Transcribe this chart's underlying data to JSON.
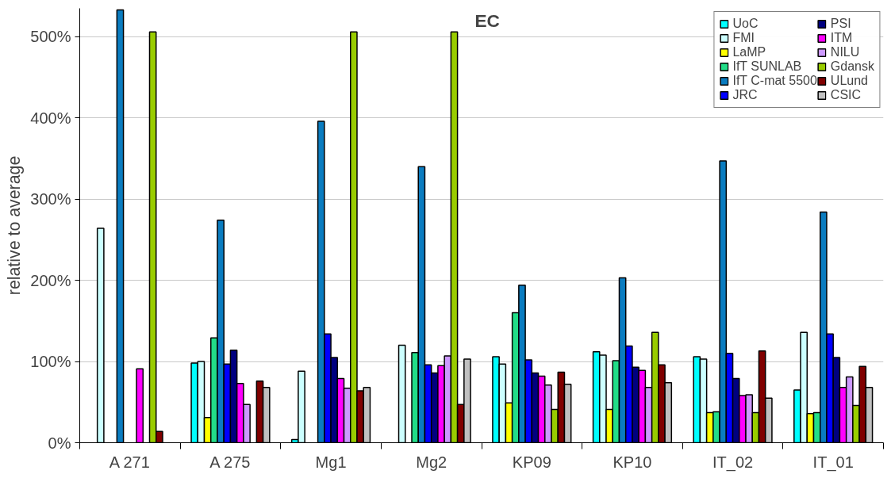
{
  "chart_data": {
    "type": "bar",
    "ylabel": "relative to average",
    "categories": [
      "A 271",
      "A 275",
      "Mg1",
      "Mg2",
      "KP09",
      "KP10",
      "IT_02",
      "IT_01"
    ],
    "series": [
      {
        "name": "UoC",
        "color": "#00ffff",
        "values": [
          null,
          98,
          4,
          null,
          106,
          112,
          106,
          65
        ]
      },
      {
        "name": "FMI",
        "color": "#ccffff",
        "values": [
          264,
          100,
          88,
          120,
          97,
          108,
          103,
          136
        ]
      },
      {
        "name": "LaMP",
        "color": "#ffff00",
        "values": [
          null,
          31,
          null,
          null,
          49,
          41,
          37,
          36
        ]
      },
      {
        "name": "IfT SUNLAB",
        "color": "#22dd88",
        "values": [
          null,
          129,
          null,
          111,
          160,
          101,
          38,
          37
        ]
      },
      {
        "name": "IfT C-mat 5500",
        "color": "#0a7cc0",
        "values": [
          533,
          274,
          396,
          340,
          194,
          203,
          347,
          284
        ]
      },
      {
        "name": "JRC",
        "color": "#0000ff",
        "values": [
          null,
          97,
          134,
          96,
          102,
          119,
          110,
          134
        ]
      },
      {
        "name": "PSI",
        "color": "#000080",
        "values": [
          null,
          114,
          105,
          86,
          86,
          93,
          79,
          105
        ]
      },
      {
        "name": "ITM",
        "color": "#ff00ff",
        "values": [
          91,
          73,
          79,
          95,
          82,
          89,
          58,
          68
        ]
      },
      {
        "name": "NILU",
        "color": "#cc99ff",
        "values": [
          null,
          47,
          67,
          107,
          71,
          68,
          59,
          81
        ]
      },
      {
        "name": "Gdansk",
        "color": "#99cc00",
        "values": [
          506,
          null,
          506,
          506,
          41,
          136,
          37,
          46
        ]
      },
      {
        "name": "ULund",
        "color": "#800000",
        "values": [
          14,
          76,
          64,
          47,
          87,
          96,
          113,
          94
        ]
      },
      {
        "name": "CSIC",
        "color": "#c0c0c0",
        "values": [
          null,
          68,
          68,
          103,
          72,
          74,
          55,
          68
        ]
      }
    ],
    "ylim": [
      0,
      535
    ],
    "yticks": [
      {
        "value": 0,
        "label": "0%"
      },
      {
        "value": 100,
        "label": "100%"
      },
      {
        "value": 200,
        "label": "200%"
      },
      {
        "value": 300,
        "label": "300%"
      },
      {
        "value": 400,
        "label": "400%"
      },
      {
        "value": 500,
        "label": "500%"
      }
    ],
    "grid": "y",
    "legend": "top right",
    "annotations": [
      "EC"
    ]
  }
}
